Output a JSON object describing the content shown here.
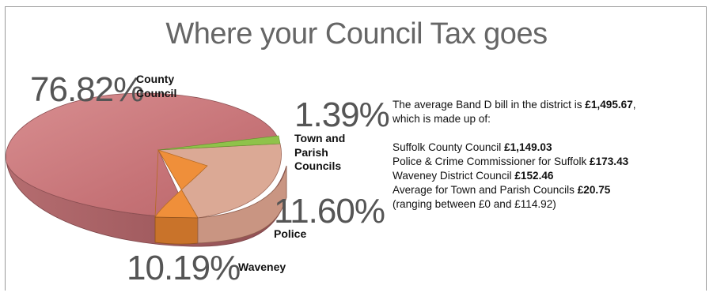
{
  "chart_data": {
    "type": "pie",
    "title": "Where your Council Tax goes",
    "slices": [
      {
        "label": "County Council",
        "value": 76.82,
        "display": "76.82%",
        "color": "#c9797c"
      },
      {
        "label": "Town and Parish Councils",
        "value": 1.39,
        "display": "1.39%",
        "color": "#8fc24a"
      },
      {
        "label": "Police",
        "value": 11.6,
        "display": "11.60%",
        "color": "#d9a893"
      },
      {
        "label": "Waveney",
        "value": 10.19,
        "display": "10.19%",
        "color": "#ef8f3a"
      }
    ]
  },
  "labels": {
    "county_pct": "76.82%",
    "county_name_line1": "County",
    "county_name_line2": "Council",
    "town_pct": "1.39%",
    "town_line1": "Town and",
    "town_line2": "Parish",
    "town_line3": "Councils",
    "police_pct": "11.60%",
    "police_name": "Police",
    "waveney_pct": "10.19%",
    "waveney_name": "Waveney"
  },
  "info": {
    "intro_prefix": "The average Band D bill in the district is ",
    "intro_amount": "£1,495.67",
    "intro_suffix": ",",
    "intro_line2": "which is made up of:",
    "items": [
      {
        "name": "Suffolk County Council ",
        "amount": "£1,149.03"
      },
      {
        "name": "Police & Crime Commissioner for Suffolk ",
        "amount": "£173.43"
      },
      {
        "name": "Waveney District Council ",
        "amount": "£152.46"
      },
      {
        "name": "Average for Town and Parish Councils ",
        "amount": "£20.75"
      }
    ],
    "range_note": "(ranging between £0 and £114.92)"
  },
  "colors": {
    "county": "#c9797c",
    "county_side": "#a45c60",
    "town": "#8fc24a",
    "police": "#d9a893",
    "waveney": "#ef8f3a",
    "waveney_side": "#c9732a"
  }
}
